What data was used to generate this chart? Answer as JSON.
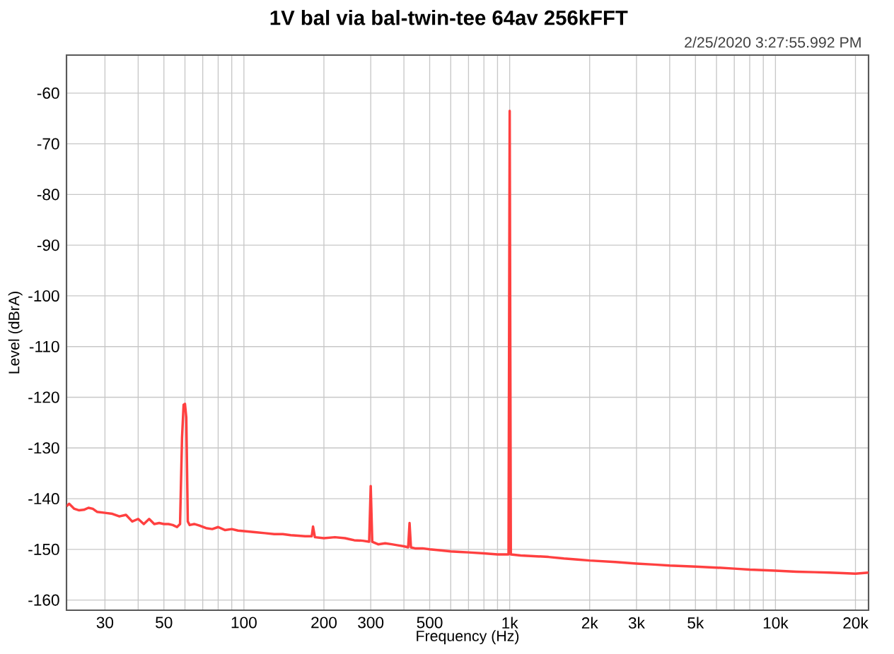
{
  "chart_data": {
    "type": "line",
    "title": "1V bal via bal-twin-tee 64av 256kFFT",
    "xlabel": "Frequency (Hz)",
    "ylabel": "Level (dBrA)",
    "annotations": [
      "2/25/2020 3:27:55.992 PM"
    ],
    "log": "x",
    "grid": true,
    "marker": "none",
    "line_style": "solid",
    "xlim": [
      21.5,
      22400
    ],
    "ylim": [
      -162,
      -52.5
    ],
    "xticks": [
      {
        "value": 30,
        "label": "30"
      },
      {
        "value": 40,
        "label": null
      },
      {
        "value": 50,
        "label": "50"
      },
      {
        "value": 60,
        "label": null
      },
      {
        "value": 70,
        "label": null
      },
      {
        "value": 80,
        "label": null
      },
      {
        "value": 90,
        "label": null
      },
      {
        "value": 100,
        "label": "100"
      },
      {
        "value": 200,
        "label": "200"
      },
      {
        "value": 300,
        "label": "300"
      },
      {
        "value": 400,
        "label": null
      },
      {
        "value": 500,
        "label": "500"
      },
      {
        "value": 600,
        "label": null
      },
      {
        "value": 700,
        "label": null
      },
      {
        "value": 800,
        "label": null
      },
      {
        "value": 900,
        "label": null
      },
      {
        "value": 1000,
        "label": "1k"
      },
      {
        "value": 2000,
        "label": "2k"
      },
      {
        "value": 3000,
        "label": "3k"
      },
      {
        "value": 4000,
        "label": null
      },
      {
        "value": 5000,
        "label": "5k"
      },
      {
        "value": 6000,
        "label": null
      },
      {
        "value": 7000,
        "label": null
      },
      {
        "value": 8000,
        "label": null
      },
      {
        "value": 9000,
        "label": null
      },
      {
        "value": 10000,
        "label": "10k"
      },
      {
        "value": 20000,
        "label": "20k"
      }
    ],
    "yticks": [
      -160,
      -150,
      -140,
      -130,
      -120,
      -110,
      -100,
      -90,
      -80,
      -70,
      -60
    ],
    "series": [
      {
        "color": "#ff4040",
        "x": [
          21.5,
          22,
          23,
          24,
          25,
          26,
          27,
          28,
          30,
          32,
          34,
          36,
          38,
          40,
          42,
          44,
          46,
          48,
          50,
          52,
          54,
          56,
          57.5,
          58.5,
          59.3,
          60,
          60.7,
          61.5,
          62.5,
          65,
          68,
          72,
          76,
          80,
          85,
          90,
          95,
          100,
          110,
          120,
          130,
          140,
          150,
          160,
          170,
          180,
          182,
          185,
          200,
          220,
          240,
          250,
          260,
          280,
          296,
          300,
          304,
          320,
          340,
          360,
          380,
          400,
          415,
          420,
          425,
          440,
          470,
          500,
          550,
          600,
          650,
          700,
          800,
          900,
          990,
          1000,
          1010,
          1100,
          1200,
          1400,
          1600,
          1800,
          2000,
          2500,
          3000,
          3500,
          4000,
          5000,
          6000,
          7000,
          8000,
          10000,
          12000,
          14000,
          16000,
          18000,
          20000,
          22400
        ],
        "values": [
          -141.5,
          -141,
          -142,
          -142.3,
          -142.2,
          -141.8,
          -142,
          -142.6,
          -142.8,
          -143,
          -143.5,
          -143.2,
          -144.5,
          -144,
          -145,
          -144,
          -145,
          -144.8,
          -145,
          -145,
          -145.2,
          -145.6,
          -145,
          -128,
          -121.5,
          -121.3,
          -124,
          -144.5,
          -145.2,
          -145,
          -145.3,
          -145.8,
          -146,
          -145.6,
          -146.2,
          -146,
          -146.3,
          -146.4,
          -146.6,
          -146.8,
          -147,
          -147,
          -147.2,
          -147.3,
          -147.4,
          -147.4,
          -145.5,
          -147.6,
          -147.8,
          -147.6,
          -147.8,
          -148,
          -148.2,
          -148.3,
          -148.5,
          -137.5,
          -148.5,
          -149,
          -148.8,
          -149,
          -149.2,
          -149.4,
          -149.6,
          -144.8,
          -149.6,
          -149.8,
          -149.8,
          -150,
          -150.2,
          -150.4,
          -150.5,
          -150.6,
          -150.8,
          -151,
          -151,
          -63.5,
          -151,
          -151.2,
          -151.3,
          -151.5,
          -151.8,
          -152,
          -152.2,
          -152.5,
          -152.8,
          -153,
          -153.2,
          -153.4,
          -153.6,
          -153.8,
          -154,
          -154.2,
          -154.4,
          -154.5,
          -154.6,
          -154.7,
          -154.8,
          -154.6
        ]
      }
    ]
  }
}
